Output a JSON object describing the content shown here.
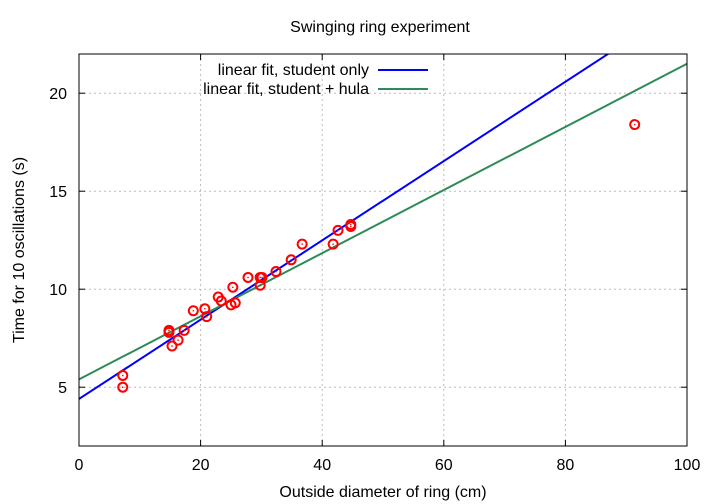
{
  "chart_data": {
    "type": "scatter",
    "title": "Swinging ring experiment",
    "xlabel": "Outside diameter of ring (cm)",
    "ylabel": "Time for 10 oscillations (s)",
    "xlim": [
      0,
      100
    ],
    "ylim": [
      2,
      22
    ],
    "xticks": [
      0,
      20,
      40,
      60,
      80,
      100
    ],
    "yticks": [
      5,
      10,
      15,
      20
    ],
    "grid": true,
    "legend_position": "top-left",
    "points": {
      "name": "data",
      "color": "#ff0000",
      "x": [
        7.2,
        7.2,
        14.8,
        14.8,
        15.3,
        16.3,
        17.3,
        18.8,
        20.7,
        21.0,
        22.9,
        23.4,
        25.0,
        25.3,
        25.7,
        27.8,
        29.8,
        29.8,
        30.1,
        32.4,
        34.9,
        36.7,
        41.8,
        42.6,
        44.7,
        44.7,
        91.4
      ],
      "y": [
        5.6,
        5.0,
        7.9,
        7.8,
        7.1,
        7.4,
        7.9,
        8.9,
        9.0,
        8.6,
        9.6,
        9.4,
        9.2,
        10.1,
        9.3,
        10.6,
        10.6,
        10.2,
        10.6,
        10.9,
        11.5,
        12.3,
        12.3,
        13.0,
        13.3,
        13.2,
        18.4
      ]
    },
    "series": [
      {
        "name": "linear fit, student only",
        "color": "#0000ff",
        "intercept": 4.4,
        "slope": 0.2023
      },
      {
        "name": "linear fit, student + hula",
        "color": "#2e8b57",
        "intercept": 5.4,
        "slope": 0.161
      }
    ]
  }
}
